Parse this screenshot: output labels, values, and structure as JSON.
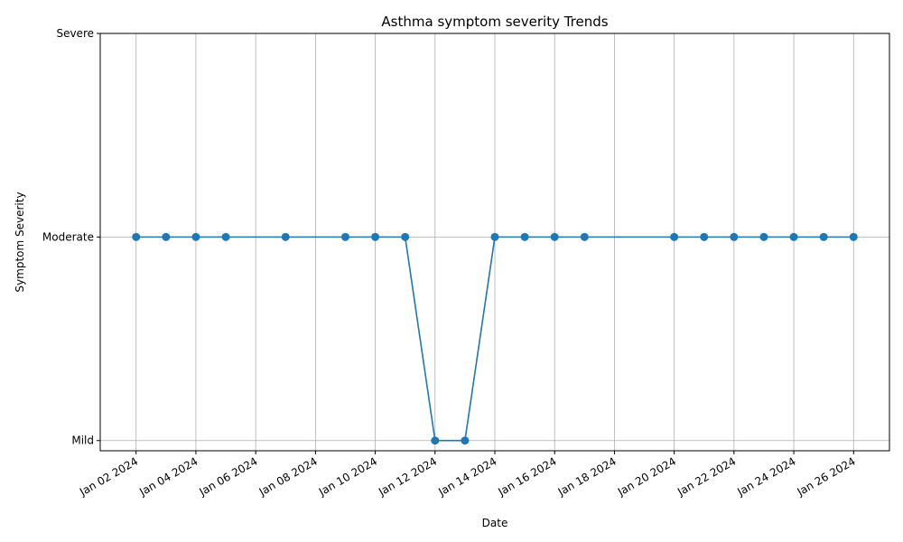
{
  "chart_data": {
    "type": "line",
    "title": "Asthma symptom severity Trends",
    "xlabel": "Date",
    "ylabel": "Symptom Severity",
    "x_ticks": [
      "2024-01-02",
      "2024-01-04",
      "2024-01-06",
      "2024-01-08",
      "2024-01-10",
      "2024-01-12",
      "2024-01-14",
      "2024-01-16",
      "2024-01-18",
      "2024-01-20",
      "2024-01-22",
      "2024-01-24",
      "2024-01-26"
    ],
    "x_tick_labels": [
      "Jan 02 2024",
      "Jan 04 2024",
      "Jan 06 2024",
      "Jan 08 2024",
      "Jan 10 2024",
      "Jan 12 2024",
      "Jan 14 2024",
      "Jan 16 2024",
      "Jan 18 2024",
      "Jan 20 2024",
      "Jan 22 2024",
      "Jan 24 2024",
      "Jan 26 2024"
    ],
    "xlim": [
      "2024-01-00.8",
      "2024-01-27.2"
    ],
    "y_categories": [
      "Mild",
      "Moderate",
      "Severe"
    ],
    "y_values_map": {
      "Mild": 1,
      "Moderate": 2,
      "Severe": 3
    },
    "ylim": [
      0.95,
      3.0
    ],
    "grid": true,
    "color": "#1f77b4",
    "series": [
      {
        "x": [
          "2024-01-02",
          "2024-01-03",
          "2024-01-04",
          "2024-01-05",
          "2024-01-07",
          "2024-01-09",
          "2024-01-10",
          "2024-01-11",
          "2024-01-12",
          "2024-01-13",
          "2024-01-14",
          "2024-01-15",
          "2024-01-16",
          "2024-01-17",
          "2024-01-20",
          "2024-01-21",
          "2024-01-22",
          "2024-01-23",
          "2024-01-24",
          "2024-01-25",
          "2024-01-26"
        ],
        "y": [
          "Moderate",
          "Moderate",
          "Moderate",
          "Moderate",
          "Moderate",
          "Moderate",
          "Moderate",
          "Moderate",
          "Mild",
          "Mild",
          "Moderate",
          "Moderate",
          "Moderate",
          "Moderate",
          "Moderate",
          "Moderate",
          "Moderate",
          "Moderate",
          "Moderate",
          "Moderate",
          "Moderate"
        ]
      }
    ]
  }
}
